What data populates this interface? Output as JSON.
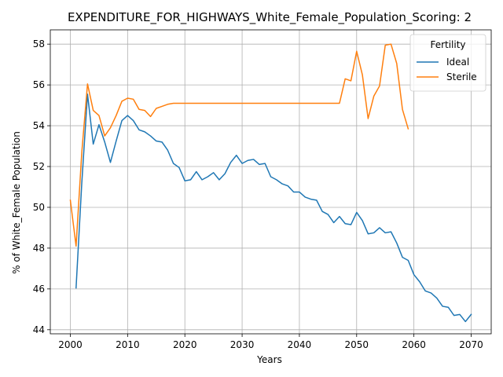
{
  "chart_data": {
    "type": "line",
    "title": "EXPENDITURE_FOR_HIGHWAYS_White_Female_Population_Scoring: 2",
    "xlabel": "Years",
    "ylabel": "% of White_Female Population",
    "xlim": [
      1996.5,
      2073.5
    ],
    "ylim": [
      43.8,
      58.7
    ],
    "xticks": [
      2000,
      2010,
      2020,
      2030,
      2040,
      2050,
      2060,
      2070
    ],
    "yticks": [
      44,
      46,
      48,
      50,
      52,
      54,
      56,
      58
    ],
    "grid": true,
    "legend": {
      "title": "Fertility",
      "placement": "top-right"
    },
    "series": [
      {
        "name": "Ideal",
        "color": "#1f77b4",
        "x": [
          2001,
          2002,
          2003,
          2004,
          2005,
          2006,
          2007,
          2008,
          2009,
          2010,
          2011,
          2012,
          2013,
          2014,
          2015,
          2016,
          2017,
          2018,
          2019,
          2020,
          2021,
          2022,
          2023,
          2024,
          2025,
          2026,
          2027,
          2028,
          2029,
          2030,
          2031,
          2032,
          2033,
          2034,
          2035,
          2036,
          2037,
          2038,
          2039,
          2040,
          2041,
          2042,
          2043,
          2044,
          2045,
          2046,
          2047,
          2048,
          2049,
          2050,
          2051,
          2052,
          2053,
          2054,
          2055,
          2056,
          2057,
          2058,
          2059,
          2060,
          2061,
          2062,
          2063,
          2064,
          2065,
          2066,
          2067,
          2068,
          2069,
          2070
        ],
        "values": [
          46.05,
          51.2,
          55.55,
          53.1,
          54.05,
          53.2,
          52.2,
          53.25,
          54.25,
          54.5,
          54.25,
          53.8,
          53.7,
          53.5,
          53.25,
          53.2,
          52.8,
          52.15,
          51.95,
          51.3,
          51.35,
          51.75,
          51.35,
          51.5,
          51.7,
          51.35,
          51.65,
          52.2,
          52.55,
          52.15,
          52.3,
          52.35,
          52.1,
          52.15,
          51.5,
          51.35,
          51.15,
          51.05,
          50.75,
          50.75,
          50.5,
          50.4,
          50.35,
          49.8,
          49.65,
          49.25,
          49.55,
          49.2,
          49.15,
          49.75,
          49.35,
          48.7,
          48.75,
          49.0,
          48.75,
          48.8,
          48.25,
          47.55,
          47.4,
          46.7,
          46.35,
          45.9,
          45.8,
          45.55,
          45.15,
          45.1,
          44.7,
          44.75,
          44.4,
          44.75
        ]
      },
      {
        "name": "Sterile",
        "color": "#ff7f0e",
        "x": [
          2000,
          2001,
          2002,
          2003,
          2004,
          2005,
          2006,
          2007,
          2008,
          2009,
          2010,
          2011,
          2012,
          2013,
          2014,
          2015,
          2016,
          2017,
          2018,
          2019,
          2020,
          2021,
          2022,
          2023,
          2024,
          2025,
          2026,
          2027,
          2028,
          2029,
          2030,
          2031,
          2032,
          2033,
          2034,
          2035,
          2036,
          2037,
          2038,
          2039,
          2040,
          2041,
          2042,
          2043,
          2044,
          2045,
          2046,
          2047,
          2048,
          2049,
          2050,
          2051,
          2052,
          2053,
          2054,
          2055,
          2056,
          2057,
          2058,
          2059
        ],
        "values": [
          50.35,
          48.1,
          52.7,
          56.05,
          54.75,
          54.5,
          53.5,
          53.9,
          54.5,
          55.2,
          55.35,
          55.3,
          54.8,
          54.75,
          54.45,
          54.85,
          54.95,
          55.05,
          55.1,
          55.1,
          55.1,
          55.1,
          55.1,
          55.1,
          55.1,
          55.1,
          55.1,
          55.1,
          55.1,
          55.1,
          55.1,
          55.1,
          55.1,
          55.1,
          55.1,
          55.1,
          55.1,
          55.1,
          55.1,
          55.1,
          55.1,
          55.1,
          55.1,
          55.1,
          55.1,
          55.1,
          55.1,
          55.1,
          56.3,
          56.2,
          57.65,
          56.5,
          54.35,
          55.45,
          55.95,
          57.95,
          58.0,
          57.05,
          54.8,
          53.85
        ]
      }
    ]
  }
}
